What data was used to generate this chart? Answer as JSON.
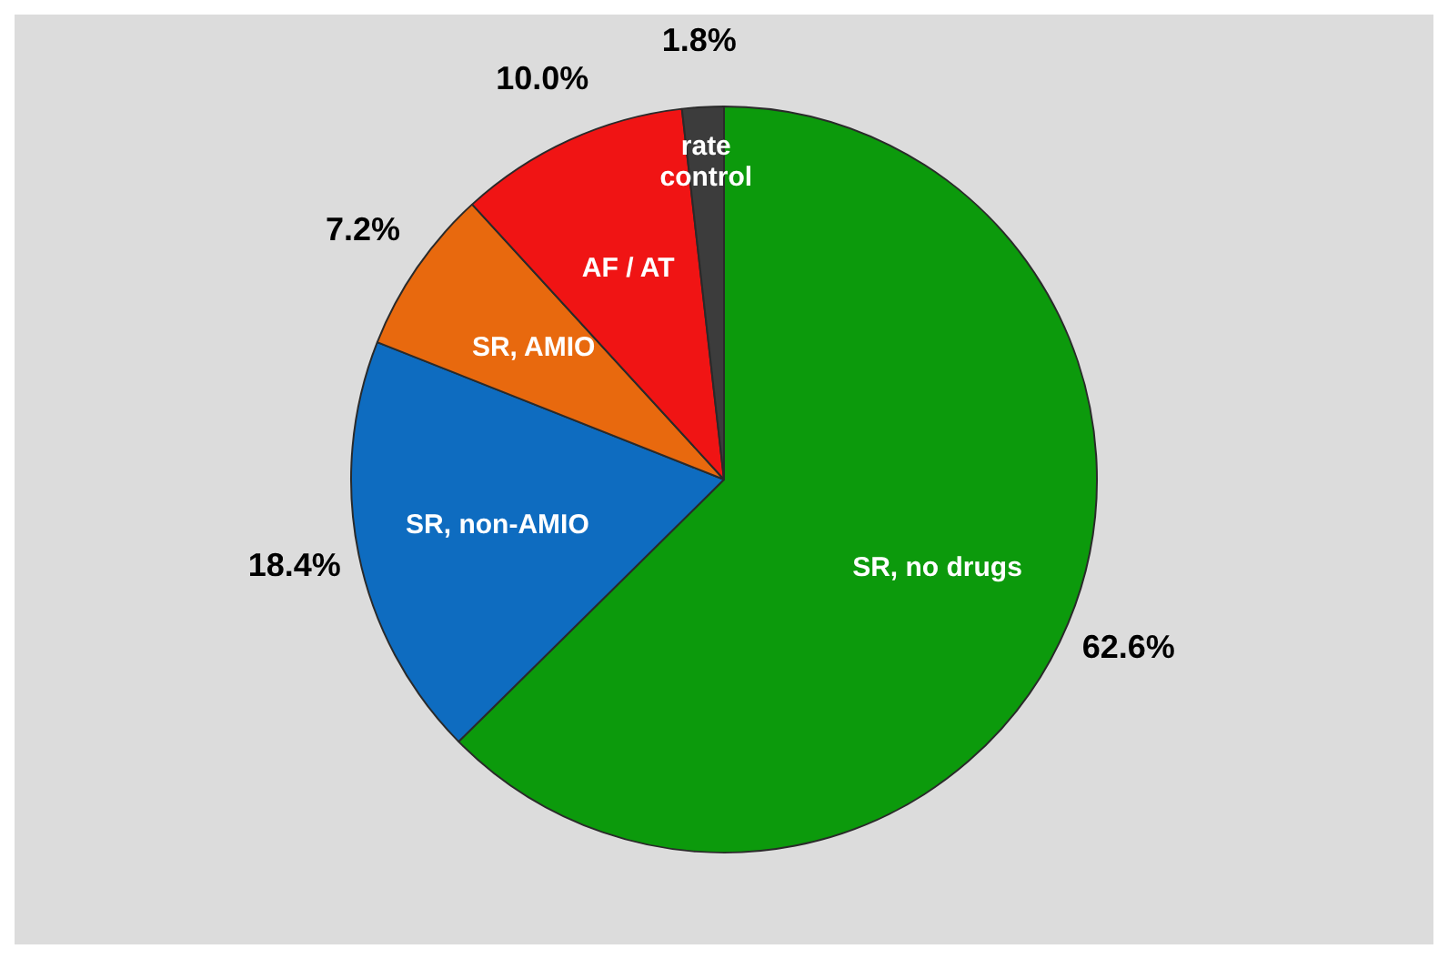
{
  "chart_data": {
    "type": "pie",
    "categories": [
      "SR, no drugs",
      "SR, non-AMIO",
      "SR, AMIO",
      "AF / AT",
      "rate control"
    ],
    "values": [
      62.6,
      18.4,
      7.2,
      10.0,
      1.8
    ],
    "colors": [
      "#0c9a0c",
      "#0e6cc0",
      "#e8690e",
      "#f01414",
      "#3c3c3c"
    ],
    "value_labels": [
      "62.6%",
      "18.4%",
      "7.2%",
      "10.0%",
      "1.8%"
    ],
    "legend": false
  }
}
